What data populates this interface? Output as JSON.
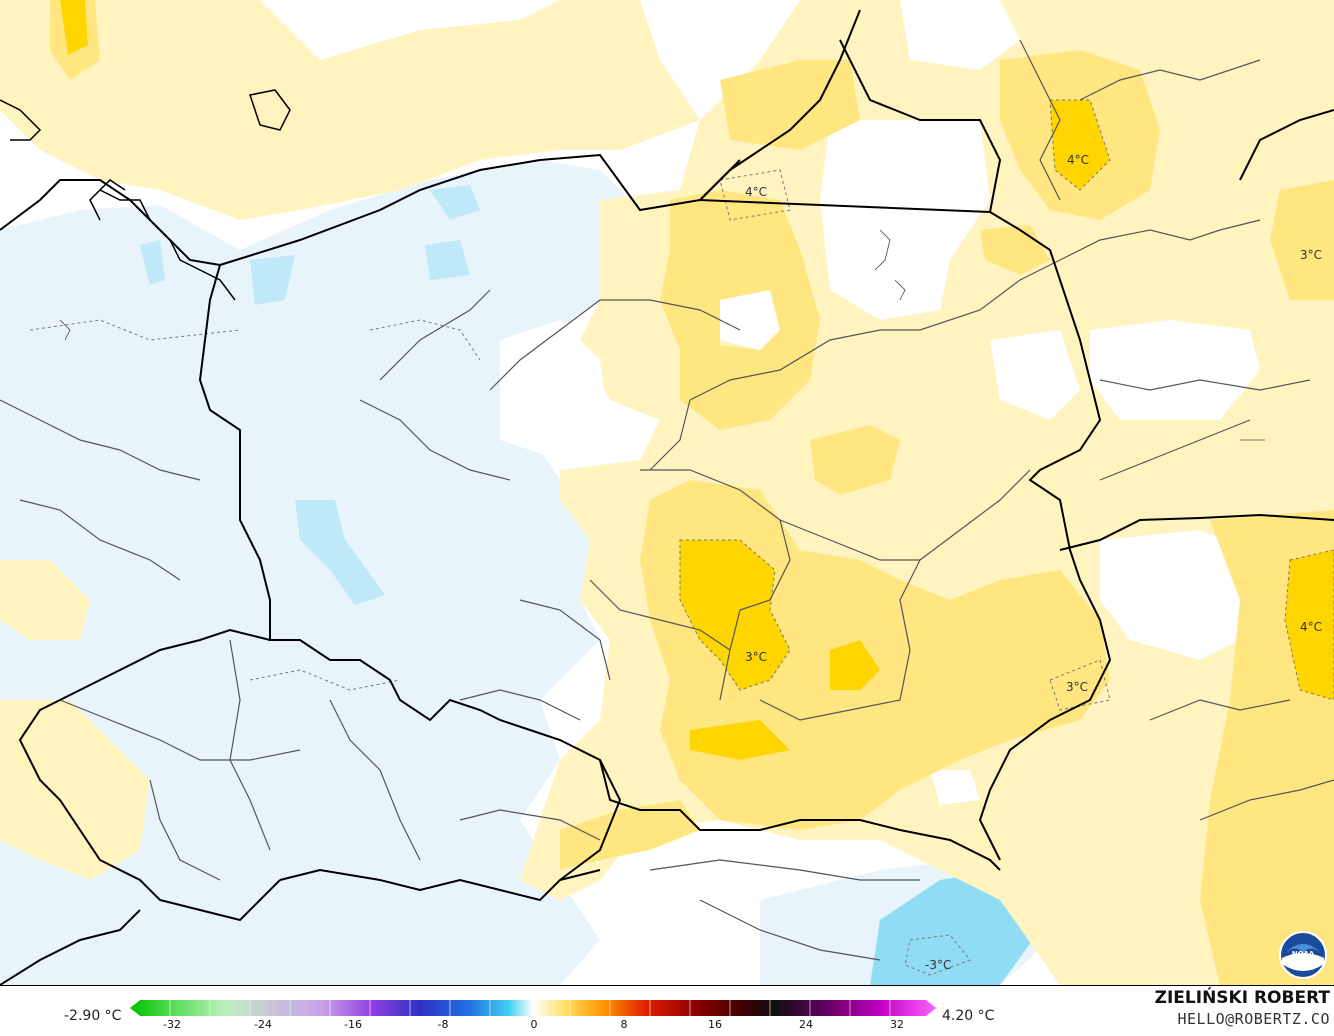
{
  "legend": {
    "min_label": "-2.90 °C",
    "max_label": "4.20 °C",
    "ticks": [
      "-32",
      "-24",
      "-16",
      "-8",
      "0",
      "8",
      "16",
      "24",
      "32"
    ]
  },
  "author": {
    "name": "ZIELIŃSKI ROBERT",
    "email": "HELLO@ROBERTZ.CO"
  },
  "contour_labels": [
    {
      "text": "4°C"
    },
    {
      "text": "4°C"
    },
    {
      "text": "3°C"
    },
    {
      "text": "3°C"
    },
    {
      "text": "3°C"
    },
    {
      "text": "4°C"
    },
    {
      "text": "-3°C"
    }
  ],
  "colors": {
    "very_light_blue": "#e8f4fc",
    "light_blue": "#bfe8f8",
    "blue": "#8fdcf4",
    "pale_yellow": "#fff3bf",
    "light_yellow": "#ffe680",
    "yellow": "#ffd500",
    "border": "#000000",
    "region_border": "#555555"
  },
  "logo": {
    "icon": "noaa-logo-icon",
    "text": "NOAA"
  }
}
